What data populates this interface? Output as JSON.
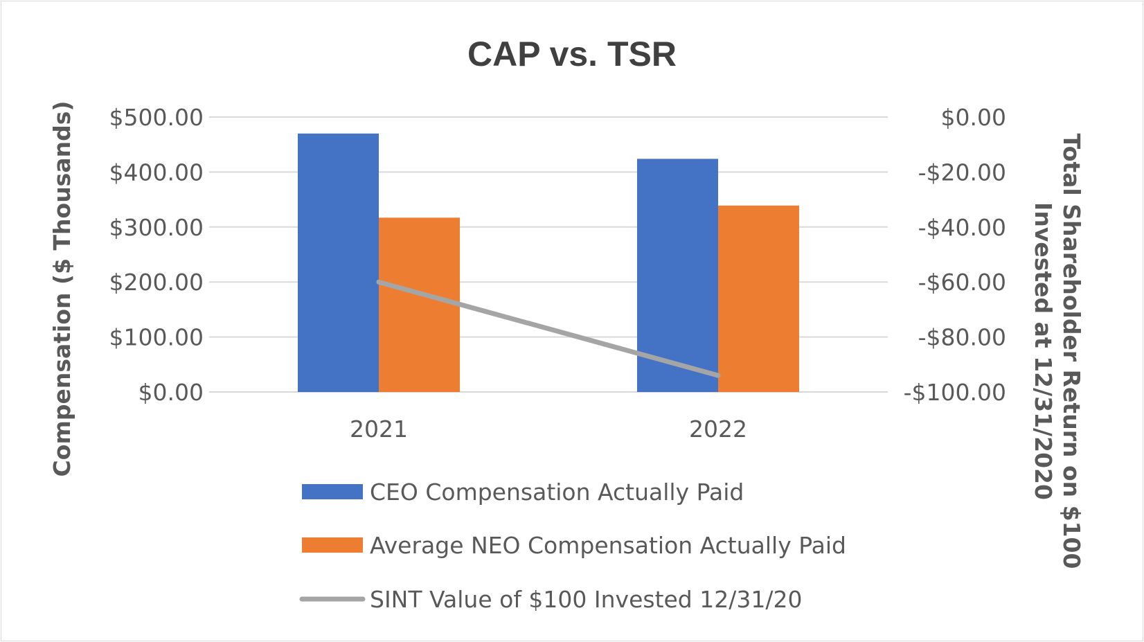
{
  "chart_data": {
    "type": "bar",
    "title": "CAP vs. TSR",
    "categories": [
      "2021",
      "2022"
    ],
    "series": [
      {
        "name": "CEO Compensation Actually Paid",
        "kind": "bar",
        "axis": "left",
        "color": "#4472C4",
        "values": [
          470,
          424
        ]
      },
      {
        "name": "Average NEO Compensation Actually Paid",
        "kind": "bar",
        "axis": "left",
        "color": "#ED7D31",
        "values": [
          317,
          339
        ]
      },
      {
        "name": "SINT Value of $100 Invested 12/31/20",
        "kind": "line",
        "axis": "right",
        "color": "#A5A5A5",
        "values": [
          -60,
          -94
        ]
      }
    ],
    "ylabel": "Compensation ($ Thousands)",
    "ylim": [
      0,
      500
    ],
    "yticks": [
      {
        "value": 0,
        "label": "$0.00"
      },
      {
        "value": 100,
        "label": "$100.00"
      },
      {
        "value": 200,
        "label": "$200.00"
      },
      {
        "value": 300,
        "label": "$300.00"
      },
      {
        "value": 400,
        "label": "$400.00"
      },
      {
        "value": 500,
        "label": "$500.00"
      }
    ],
    "y2label_lines": [
      "Total Shareholder Return on $100",
      "Invested at 12/31/2020"
    ],
    "y2lim": [
      -100,
      0
    ],
    "y2ticks": [
      {
        "value": 0,
        "label": "$0.00"
      },
      {
        "value": -20,
        "label": "-$20.00"
      },
      {
        "value": -40,
        "label": "-$40.00"
      },
      {
        "value": -60,
        "label": "-$60.00"
      },
      {
        "value": -80,
        "label": "-$80.00"
      },
      {
        "value": -100,
        "label": "-$100.00"
      }
    ],
    "grid": true,
    "legend_position": "bottom"
  }
}
